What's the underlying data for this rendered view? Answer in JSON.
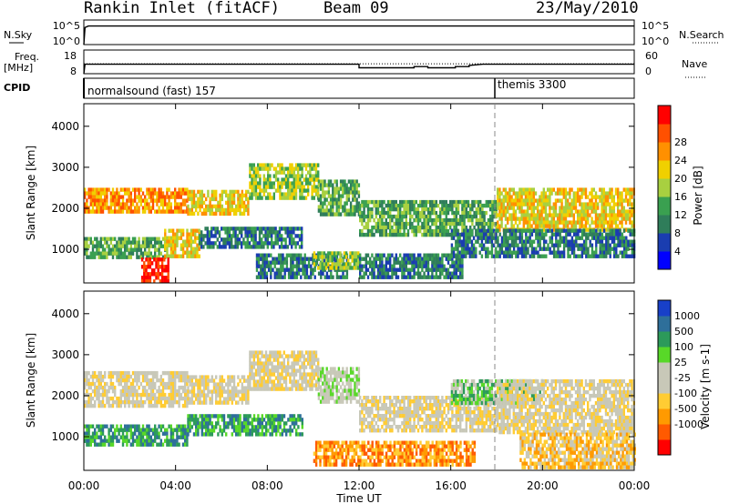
{
  "header": {
    "station": "Rankin Inlet (fitACF)",
    "beam": "Beam 09",
    "date": "23/May/2010"
  },
  "left_labels": {
    "nsky": "N.Sky",
    "freq": "Freq.",
    "freq_unit": "[MHz]",
    "cpid": "CPID"
  },
  "right_labels": {
    "nsearch": "N.Search",
    "nave": "Nave"
  },
  "cpid_labels": {
    "first": "normalsound (fast) 157",
    "second": "themis 3300"
  },
  "noise_ticks": {
    "left_top": "10^5",
    "left_bottom": "10^0",
    "right_top": "10^5",
    "right_bottom": "10^0"
  },
  "freq_ticks": {
    "left_top": "18",
    "left_bottom": "8",
    "right_top": "60",
    "right_bottom": "0"
  },
  "x_axis": {
    "title": "Time UT",
    "ticks": [
      "00:00",
      "04:00",
      "08:00",
      "12:00",
      "16:00",
      "20:00",
      "00:00"
    ]
  },
  "colors": {
    "power_scale": [
      "#0000ff",
      "#1a3db0",
      "#2f7d5a",
      "#3aa050",
      "#a8d040",
      "#f0d000",
      "#ff9000",
      "#ff5000",
      "#ff0000"
    ],
    "velocity_scale": [
      "#ff0000",
      "#ff5a00",
      "#ff9a00",
      "#ffcc33",
      "#c8c8b8",
      "#c8c8b8",
      "#58d828",
      "#2c9a5a",
      "#2e6f9a",
      "#1840c8"
    ]
  },
  "chart_data": [
    {
      "type": "line",
      "title": "",
      "xlabel": "",
      "ylabel": "N.Sky",
      "yscale": "log",
      "ylim": [
        1,
        100000
      ],
      "series": [
        {
          "name": "N.Sky",
          "x": [
            0,
            0.05,
            0.2,
            24
          ],
          "y": [
            1,
            3000,
            6000,
            6000
          ]
        }
      ]
    },
    {
      "type": "line",
      "title": "",
      "xlabel": "",
      "ylabel": "[MHz]",
      "ylim": [
        8,
        18
      ],
      "series": [
        {
          "name": "Freq.",
          "x": [
            0,
            0.05,
            12.0,
            12.0,
            14.4,
            14.4,
            15.0,
            15.0,
            16.2,
            16.2,
            16.8,
            16.8,
            17.4,
            24
          ],
          "y": [
            8,
            12,
            12,
            10.5,
            10.5,
            11.0,
            11.0,
            10.5,
            10.5,
            11.0,
            11.0,
            11.5,
            12,
            12
          ]
        },
        {
          "name": "Nave",
          "x": [
            0,
            24
          ],
          "y": [
            12.2,
            12.2
          ]
        }
      ]
    },
    {
      "type": "heatmap",
      "title": "",
      "xlabel": "",
      "ylabel": "Slant Range [km]",
      "xlim": [
        0,
        24
      ],
      "ylim": [
        180,
        4550
      ],
      "yticks": [
        1000,
        2000,
        3000,
        4000
      ],
      "colorbar": {
        "label": "Power [dB]",
        "ticks": [
          4,
          8,
          12,
          16,
          20,
          24,
          28
        ]
      },
      "bands": [
        {
          "t": [
            0,
            4.5
          ],
          "r": [
            1900,
            2500
          ],
          "level": 6
        },
        {
          "t": [
            4.5,
            7.2
          ],
          "r": [
            1850,
            2450
          ],
          "level": 5
        },
        {
          "t": [
            7.2,
            10.2
          ],
          "r": [
            2300,
            3100
          ],
          "level": 4
        },
        {
          "t": [
            10.2,
            12.0
          ],
          "r": [
            1900,
            2700
          ],
          "level": 3
        },
        {
          "t": [
            12.0,
            18.0
          ],
          "r": [
            1400,
            2200
          ],
          "level": 3
        },
        {
          "t": [
            18.0,
            24.0
          ],
          "r": [
            1500,
            2500
          ],
          "level": 5
        },
        {
          "t": [
            0,
            3.5
          ],
          "r": [
            850,
            1300
          ],
          "level": 3
        },
        {
          "t": [
            3.5,
            5.0
          ],
          "r": [
            850,
            1500
          ],
          "level": 5
        },
        {
          "t": [
            5.0,
            9.5
          ],
          "r": [
            1050,
            1550
          ],
          "level": 2
        },
        {
          "t": [
            2.5,
            3.7
          ],
          "r": [
            200,
            800
          ],
          "level": 8
        },
        {
          "t": [
            7.5,
            11.5
          ],
          "r": [
            300,
            900
          ],
          "level": 2
        },
        {
          "t": [
            10.0,
            12.0
          ],
          "r": [
            550,
            950
          ],
          "level": 4
        },
        {
          "t": [
            12.0,
            16.5
          ],
          "r": [
            300,
            900
          ],
          "level": 2
        },
        {
          "t": [
            16.0,
            24.0
          ],
          "r": [
            800,
            1500
          ],
          "level": 2
        }
      ]
    },
    {
      "type": "heatmap",
      "title": "",
      "xlabel": "Time UT",
      "ylabel": "Slant Range [km]",
      "xlim": [
        0,
        24
      ],
      "ylim": [
        180,
        4550
      ],
      "yticks": [
        1000,
        2000,
        3000,
        4000
      ],
      "colorbar": {
        "label": "Velocity [m s-1]",
        "ticks": [
          "1000",
          "500",
          "100",
          "25",
          "-25",
          "-100",
          "-500",
          "-1000"
        ]
      },
      "bands": [
        {
          "t": [
            0,
            4.5
          ],
          "r": [
            1800,
            2600
          ],
          "level": 4
        },
        {
          "t": [
            4.5,
            7.2
          ],
          "r": [
            1800,
            2500
          ],
          "level": 4
        },
        {
          "t": [
            7.2,
            10.2
          ],
          "r": [
            2200,
            3100
          ],
          "level": 4
        },
        {
          "t": [
            10.2,
            12.0
          ],
          "r": [
            1900,
            2700
          ],
          "level": 5
        },
        {
          "t": [
            12.0,
            18.0
          ],
          "r": [
            1200,
            2000
          ],
          "level": 4
        },
        {
          "t": [
            16.0,
            20.0
          ],
          "r": [
            1800,
            2400
          ],
          "level": 6
        },
        {
          "t": [
            18.0,
            24.0
          ],
          "r": [
            1100,
            2400
          ],
          "level": 4
        },
        {
          "t": [
            0,
            4.5
          ],
          "r": [
            850,
            1300
          ],
          "level": 7
        },
        {
          "t": [
            4.5,
            9.5
          ],
          "r": [
            1050,
            1550
          ],
          "level": 7
        },
        {
          "t": [
            10.0,
            17.0
          ],
          "r": [
            300,
            900
          ],
          "level": 2
        },
        {
          "t": [
            19.0,
            24.0
          ],
          "r": [
            300,
            1100
          ],
          "level": 3
        }
      ]
    }
  ]
}
